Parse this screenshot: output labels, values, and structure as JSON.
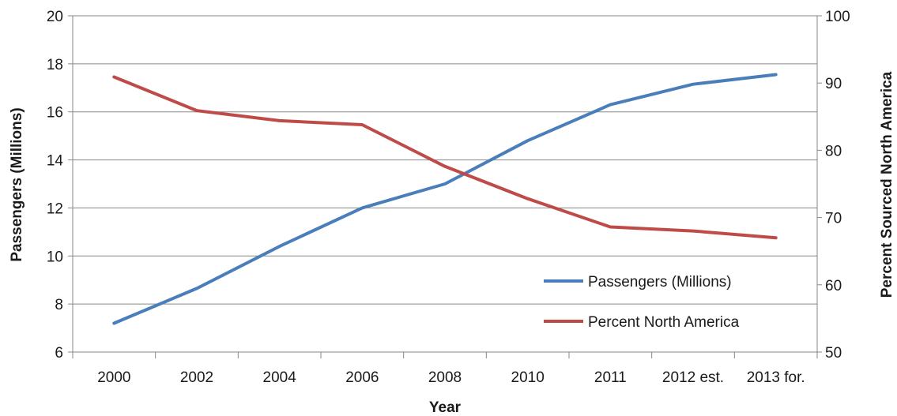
{
  "chart_data": {
    "type": "line",
    "title": "",
    "categories": [
      "2000",
      "2002",
      "2004",
      "2006",
      "2008",
      "2010",
      "2011",
      "2012 est.",
      "2013 for."
    ],
    "xlabel": "Year",
    "y_left": {
      "label": "Passengers (Millions)",
      "range": [
        6,
        20
      ],
      "ticks": [
        6,
        8,
        10,
        12,
        14,
        16,
        18,
        20
      ]
    },
    "y_right": {
      "label": "Percent Sourced North America",
      "range": [
        50,
        100
      ],
      "ticks": [
        50,
        60,
        70,
        80,
        90,
        100
      ]
    },
    "grid": "horizontal",
    "legend_position": "bottom-right",
    "series": [
      {
        "name": "Passengers (Millions)",
        "axis": "left",
        "color": "#4a7ebb",
        "values": [
          7.2,
          8.65,
          10.4,
          12.0,
          13.0,
          14.8,
          16.3,
          17.15,
          17.55
        ]
      },
      {
        "name": "Percent North America",
        "axis": "right",
        "color": "#be4b48",
        "values": [
          90.9,
          85.9,
          84.4,
          83.8,
          77.6,
          72.8,
          68.6,
          68.0,
          67.0
        ]
      }
    ]
  }
}
